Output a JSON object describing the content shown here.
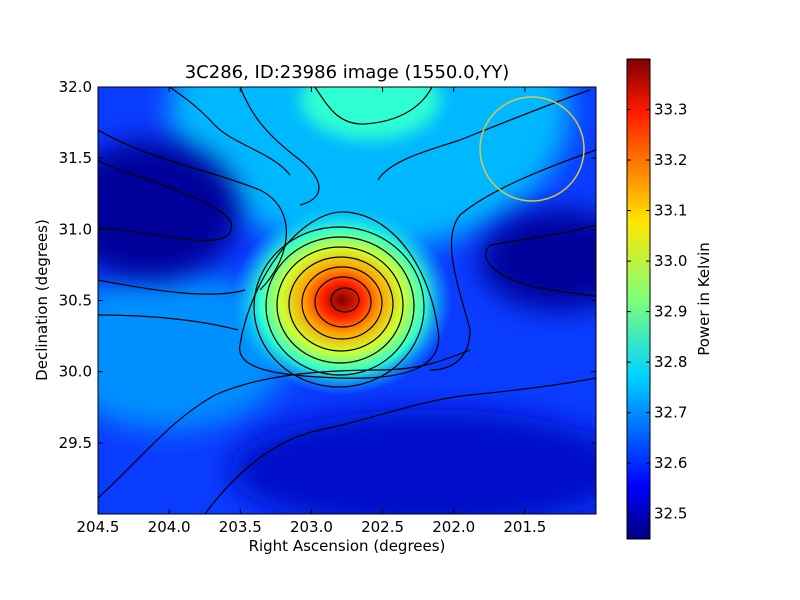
{
  "chart_data": {
    "type": "heatmap",
    "title": "3C286, ID:23986 image (1550.0,YY)",
    "xlabel": "Right Ascension (degrees)",
    "ylabel": "Declination (degrees)",
    "xlim": [
      204.5,
      201.0
    ],
    "ylim": [
      29.0,
      32.0
    ],
    "xticks": [
      204.5,
      204.0,
      203.5,
      203.0,
      202.5,
      202.0,
      201.5
    ],
    "xtick_labels": [
      "204.5",
      "204.0",
      "203.5",
      "203.0",
      "202.5",
      "202.0",
      "201.5"
    ],
    "yticks": [
      29.5,
      30.0,
      30.5,
      31.0,
      31.5,
      32.0
    ],
    "ytick_labels": [
      "29.5",
      "30.0",
      "30.5",
      "31.0",
      "31.5",
      "32.0"
    ],
    "colorbar": {
      "label": "Power in Kelvin",
      "range": [
        32.45,
        33.4
      ],
      "ticks": [
        32.5,
        32.6,
        32.7,
        32.8,
        32.9,
        33.0,
        33.1,
        33.2,
        33.3
      ],
      "tick_labels": [
        "32.5",
        "32.6",
        "32.7",
        "32.8",
        "32.9",
        "33.0",
        "33.1",
        "33.2",
        "33.3"
      ],
      "colormap": "jet"
    },
    "peak": {
      "ra": 202.8,
      "dec": 30.5,
      "value": 33.38
    },
    "beam_circle": {
      "ra": 201.45,
      "dec": 31.55,
      "radius_deg": 0.37,
      "color": "#d4c84a"
    },
    "contour_color": "#000000",
    "grid": false
  }
}
